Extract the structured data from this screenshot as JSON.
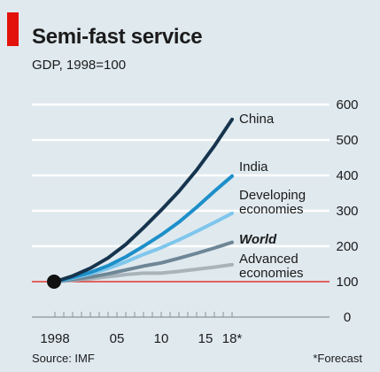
{
  "header": {
    "title": "Semi-fast service",
    "subtitle": "GDP, 1998=100"
  },
  "footer": {
    "source": "Source: IMF",
    "note": "*Forecast"
  },
  "colors": {
    "background": "#dfe9ee",
    "gridline": "#ffffff",
    "baseline": "#e3120b",
    "accent": "#e3120b"
  },
  "chart_data": {
    "type": "line",
    "title": "Semi-fast service",
    "subtitle": "GDP, 1998=100",
    "xlabel": "",
    "ylabel": "",
    "xlim": [
      1998,
      2018
    ],
    "ylim": [
      0,
      600
    ],
    "x_ticks": [
      {
        "value": 1998,
        "label": "1998"
      },
      {
        "value": 2005,
        "label": "05"
      },
      {
        "value": 2010,
        "label": "10"
      },
      {
        "value": 2015,
        "label": "15"
      },
      {
        "value": 2018,
        "label": "18*"
      }
    ],
    "y_ticks": [
      0,
      100,
      200,
      300,
      400,
      500,
      600
    ],
    "grid": true,
    "legend": "direct labels at line ends",
    "x": [
      1998,
      2000,
      2002,
      2004,
      2006,
      2008,
      2010,
      2012,
      2014,
      2016,
      2018
    ],
    "series": [
      {
        "name": "China",
        "label_lines": [
          "China"
        ],
        "bold_italic": false,
        "color": "#17344e",
        "values": [
          100,
          116,
          138,
          167,
          205,
          252,
          302,
          355,
          415,
          483,
          558
        ]
      },
      {
        "name": "India",
        "label_lines": [
          "India"
        ],
        "bold_italic": false,
        "color": "#1d8fc9",
        "values": [
          100,
          112,
          126,
          145,
          170,
          200,
          232,
          268,
          310,
          355,
          398
        ]
      },
      {
        "name": "Developing economies",
        "label_lines": [
          "Developing",
          "economies"
        ],
        "bold_italic": false,
        "color": "#7fc6ec",
        "values": [
          100,
          110,
          122,
          137,
          156,
          177,
          196,
          218,
          242,
          267,
          293
        ]
      },
      {
        "name": "World",
        "label_lines": [
          "World"
        ],
        "bold_italic": true,
        "color": "#6e8797",
        "values": [
          100,
          106,
          113,
          122,
          133,
          144,
          153,
          166,
          180,
          195,
          211
        ]
      },
      {
        "name": "Advanced economies",
        "label_lines": [
          "Advanced",
          "economies"
        ],
        "bold_italic": false,
        "color": "#a9b4ba",
        "values": [
          100,
          104,
          108,
          114,
          120,
          124,
          124,
          129,
          135,
          141,
          148
        ]
      }
    ],
    "start_marker": {
      "x": 1998,
      "y": 100
    }
  }
}
